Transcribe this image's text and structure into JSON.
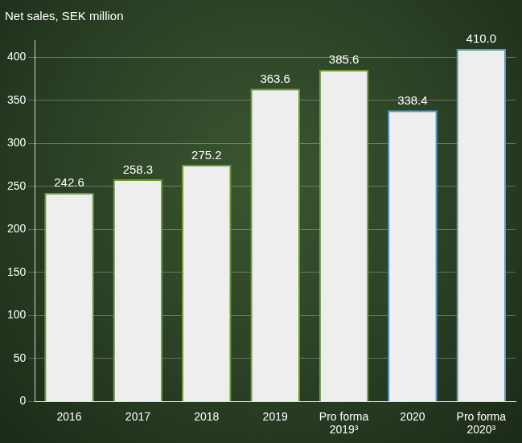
{
  "chart_data": {
    "type": "bar",
    "title": "Net sales, SEK million",
    "categories": [
      "2016",
      "2017",
      "2018",
      "2019",
      "Pro forma 2019³",
      "2020",
      "Pro forma 2020³"
    ],
    "values": [
      242.6,
      258.3,
      275.2,
      363.6,
      385.6,
      338.4,
      410.0
    ],
    "value_labels": [
      "242.6",
      "258.3",
      "275.2",
      "363.6",
      "385.6",
      "338.4",
      "410.0"
    ],
    "colors": [
      "#6a9a2a",
      "#6a9a2a",
      "#6a9a2a",
      "#6a9a2a",
      "#6a9a2a",
      "#4a9ad0",
      "#4a9ad0"
    ],
    "ylim": [
      0,
      420
    ],
    "yticks": [
      0,
      50,
      100,
      150,
      200,
      250,
      300,
      350,
      400
    ],
    "grid": true,
    "data_labels": true
  }
}
